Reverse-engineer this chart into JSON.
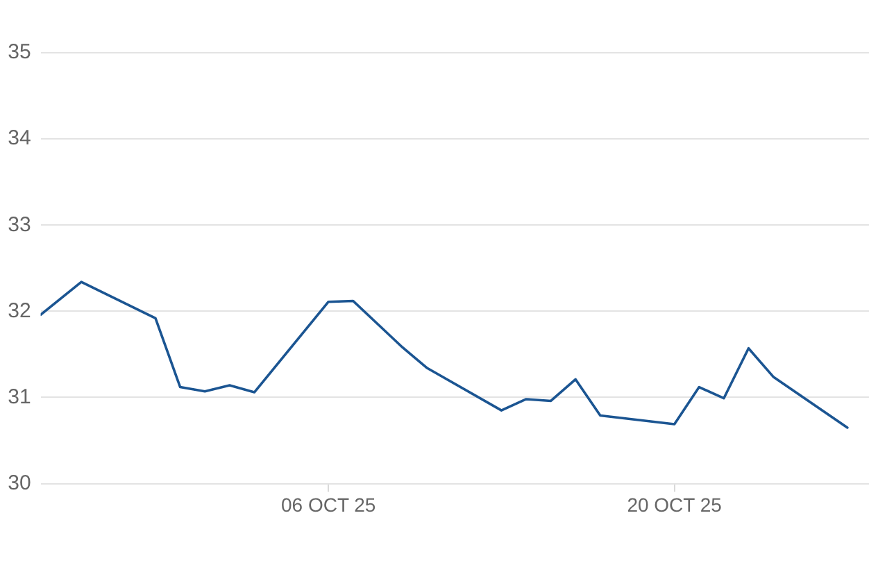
{
  "chart_data": {
    "type": "line",
    "x": [
      "--09-24T08:30",
      "--09-26",
      "--09-29",
      "--09-30",
      "--10-01",
      "--10-02",
      "--10-03",
      "--10-06",
      "--10-07",
      "--10-08",
      "--10-09",
      "--10-10",
      "--10-13",
      "--10-14",
      "--10-15",
      "--10-16",
      "--10-17",
      "--10-20",
      "--10-21",
      "--10-22",
      "--10-23",
      "--10-24",
      "--10-27"
    ],
    "series": [
      {
        "color": "#1b5592",
        "values": [
          31.96,
          32.34,
          31.92,
          31.12,
          31.07,
          31.14,
          31.06,
          32.11,
          32.12,
          31.85,
          31.58,
          31.34,
          30.85,
          30.98,
          30.96,
          31.21,
          30.79,
          30.69,
          31.12,
          30.99,
          31.57,
          31.24,
          30.65
        ]
      }
    ],
    "xlim": [
      "--09-24T08:30",
      "--10-27T21:00"
    ],
    "xticks": [
      {
        "value": "--10-06",
        "label": "06 OCT 25"
      },
      {
        "value": "--10-20",
        "label": "20 OCT 25"
      }
    ],
    "ylim": [
      30,
      35
    ],
    "yticks": [
      30,
      31,
      32,
      33,
      34,
      35
    ],
    "grid": "y"
  }
}
